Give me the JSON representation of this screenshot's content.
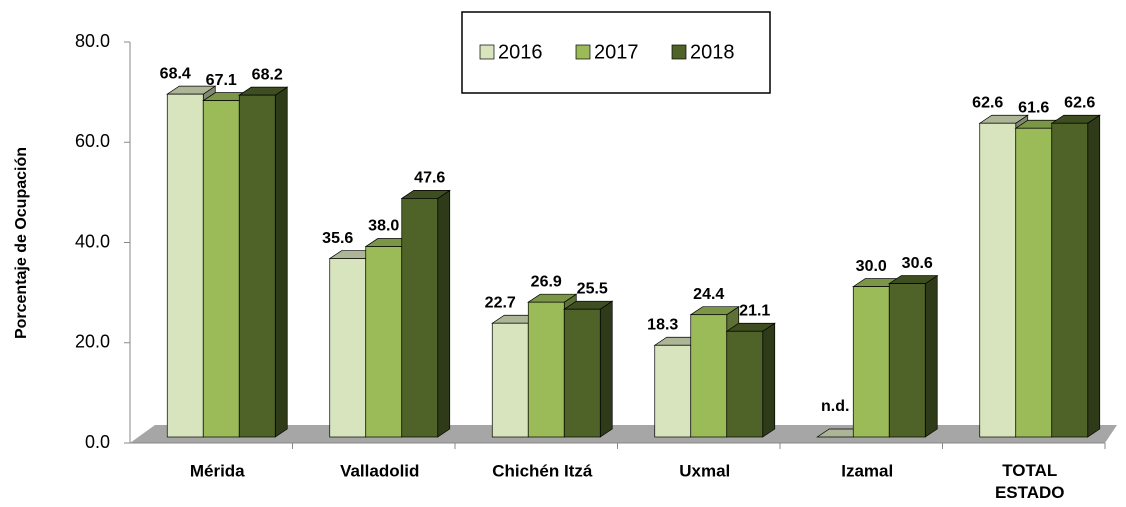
{
  "chart_data": {
    "type": "bar3d",
    "y_label": "Porcentaje de Ocupación",
    "categories": [
      "Mérida",
      "Valladolid",
      "Chichén Itzá",
      "Uxmal",
      "Izamal",
      "TOTAL ESTADO"
    ],
    "series": [
      {
        "name": "2016",
        "color": "#d7e4bd",
        "values": [
          68.4,
          35.6,
          22.7,
          18.3,
          null,
          62.6
        ],
        "value_labels": [
          "68.4",
          "35.6",
          "22.7",
          "18.3",
          "n.d.",
          "62.6"
        ]
      },
      {
        "name": "2017",
        "color": "#9bbb59",
        "values": [
          67.1,
          38.0,
          26.9,
          24.4,
          30.0,
          61.6
        ],
        "value_labels": [
          "67.1",
          "38.0",
          "26.9",
          "24.4",
          "30.0",
          "61.6"
        ]
      },
      {
        "name": "2018",
        "color": "#4f6228",
        "values": [
          68.2,
          47.6,
          25.5,
          21.1,
          30.6,
          62.6
        ],
        "value_labels": [
          "68.2",
          "47.6",
          "25.5",
          "21.1",
          "30.6",
          "62.6"
        ]
      }
    ],
    "ylim": [
      0,
      80
    ],
    "yticks": [
      {
        "value": 0,
        "label": "0.0"
      },
      {
        "value": 20,
        "label": "20.0"
      },
      {
        "value": 40,
        "label": "40.0"
      },
      {
        "value": 60,
        "label": "60.0"
      },
      {
        "value": 80,
        "label": "80.0"
      }
    ],
    "legend": "top"
  }
}
